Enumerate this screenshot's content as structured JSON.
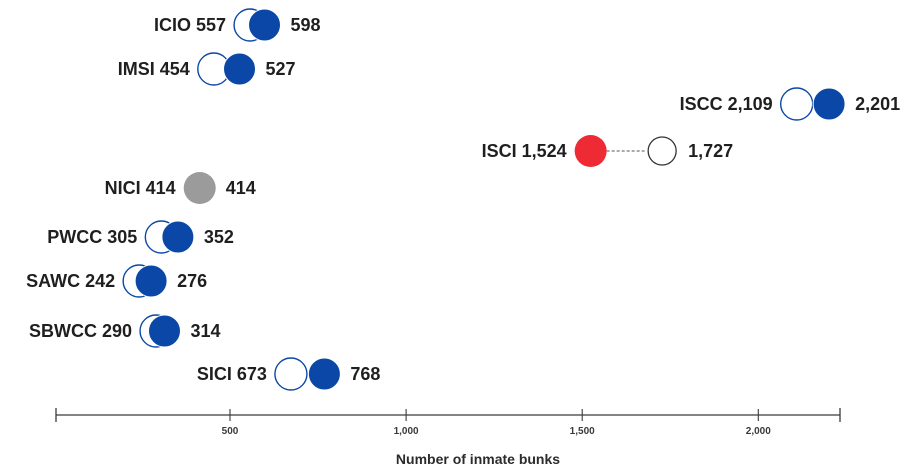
{
  "chart_data": {
    "type": "dumbbell",
    "xlabel": "Number of inmate bunks",
    "xlim": [
      -500,
      2300
    ],
    "xticks": [
      500,
      1000,
      1500,
      2000
    ],
    "xtick_labels": [
      "500",
      "1,000",
      "1,500",
      "2,000"
    ],
    "grid": false,
    "colors": {
      "increase": "#0a47a6",
      "decrease": "#ee2a35",
      "unchanged": "#9b9b9b",
      "hollow_stroke": "#0a47a6",
      "hollow_stroke_plain": "#333333"
    },
    "rows": [
      {
        "facility": "ICIO",
        "start": 557,
        "end": 598,
        "start_label": "ICIO 557",
        "end_label": "598"
      },
      {
        "facility": "IMSI",
        "start": 454,
        "end": 527,
        "start_label": "IMSI 454",
        "end_label": "527"
      },
      {
        "facility": "ISCC",
        "start": 2109,
        "end": 2201,
        "start_label": "ISCC 2,109",
        "end_label": "2,201"
      },
      {
        "facility": "ISCI",
        "start": 1524,
        "end": 1727,
        "start_label": "ISCI 1,524",
        "end_label": "1,727"
      },
      {
        "facility": "NICI",
        "start": 414,
        "end": 414,
        "start_label": "NICI 414",
        "end_label": "414"
      },
      {
        "facility": "PWCC",
        "start": 305,
        "end": 352,
        "start_label": "PWCC 305",
        "end_label": "352"
      },
      {
        "facility": "SAWC",
        "start": 242,
        "end": 276,
        "start_label": "SAWC 242",
        "end_label": "276"
      },
      {
        "facility": "SBWCC",
        "start": 290,
        "end": 314,
        "start_label": "SBWCC 290",
        "end_label": "314"
      },
      {
        "facility": "SICI",
        "start": 673,
        "end": 768,
        "start_label": "SICI 673",
        "end_label": "768"
      }
    ]
  }
}
